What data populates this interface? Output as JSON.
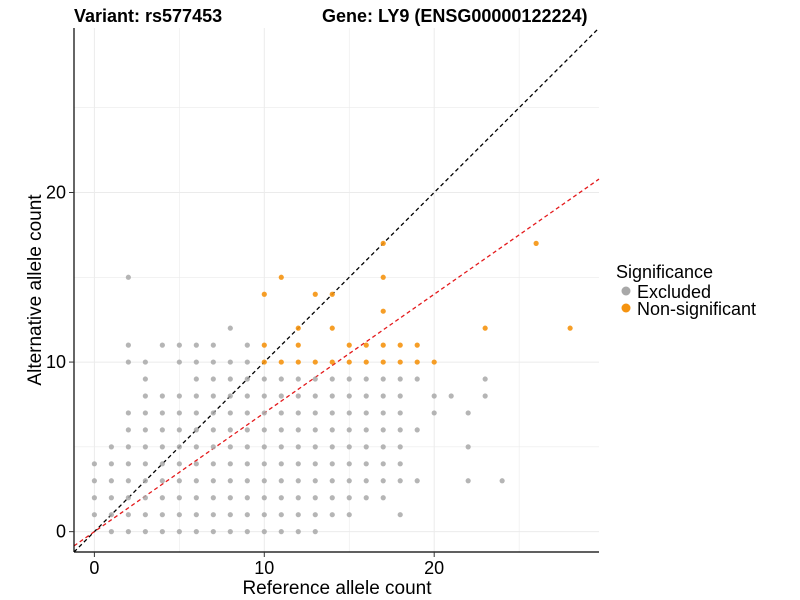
{
  "chart_data": {
    "type": "scatter",
    "title_left": "Variant: rs577453",
    "title_right": "Gene: LY9 (ENSG00000122224)",
    "xlabel": "Reference allele count",
    "ylabel": "Alternative allele count",
    "xlim": [
      -1.2,
      29.7
    ],
    "ylim": [
      -1.2,
      29.7
    ],
    "x_ticks": [
      0,
      10,
      20
    ],
    "y_ticks": [
      0,
      10,
      20
    ],
    "x_tick_labels": [
      "0",
      "10",
      "20"
    ],
    "y_tick_labels": [
      "0",
      "10",
      "20"
    ],
    "grid": true,
    "legend": {
      "title": "Significance",
      "position": "right",
      "entries": [
        "Excluded",
        "Non-significant"
      ]
    },
    "colors": {
      "Excluded": "#a8a8a8",
      "Non-significant": "#f5930f",
      "line_identity": "#000000",
      "line_fit": "#e41a1c",
      "grid": "#ebebeb"
    },
    "reference_lines": [
      {
        "name": "identity",
        "slope": 1.0,
        "intercept": 0.0,
        "color": "#000000",
        "dashed": true
      },
      {
        "name": "fit",
        "slope": 0.7,
        "intercept": 0.0,
        "color": "#e41a1c",
        "dashed": true
      }
    ],
    "series": [
      {
        "name": "Excluded",
        "points": [
          [
            0,
            1
          ],
          [
            0,
            2
          ],
          [
            0,
            3
          ],
          [
            0,
            4
          ],
          [
            1,
            0
          ],
          [
            1,
            1
          ],
          [
            1,
            2
          ],
          [
            1,
            3
          ],
          [
            1,
            4
          ],
          [
            1,
            5
          ],
          [
            2,
            0
          ],
          [
            2,
            1
          ],
          [
            2,
            2
          ],
          [
            2,
            3
          ],
          [
            2,
            4
          ],
          [
            2,
            5
          ],
          [
            2,
            6
          ],
          [
            2,
            7
          ],
          [
            2,
            10
          ],
          [
            2,
            11
          ],
          [
            2,
            15
          ],
          [
            3,
            0
          ],
          [
            3,
            1
          ],
          [
            3,
            2
          ],
          [
            3,
            3
          ],
          [
            3,
            4
          ],
          [
            3,
            5
          ],
          [
            3,
            6
          ],
          [
            3,
            7
          ],
          [
            3,
            8
          ],
          [
            3,
            9
          ],
          [
            3,
            10
          ],
          [
            4,
            0
          ],
          [
            4,
            1
          ],
          [
            4,
            2
          ],
          [
            4,
            3
          ],
          [
            4,
            4
          ],
          [
            4,
            5
          ],
          [
            4,
            6
          ],
          [
            4,
            7
          ],
          [
            4,
            8
          ],
          [
            4,
            11
          ],
          [
            5,
            0
          ],
          [
            5,
            1
          ],
          [
            5,
            2
          ],
          [
            5,
            3
          ],
          [
            5,
            4
          ],
          [
            5,
            5
          ],
          [
            5,
            6
          ],
          [
            5,
            7
          ],
          [
            5,
            8
          ],
          [
            5,
            10
          ],
          [
            5,
            11
          ],
          [
            6,
            0
          ],
          [
            6,
            1
          ],
          [
            6,
            2
          ],
          [
            6,
            3
          ],
          [
            6,
            4
          ],
          [
            6,
            5
          ],
          [
            6,
            6
          ],
          [
            6,
            7
          ],
          [
            6,
            8
          ],
          [
            6,
            9
          ],
          [
            6,
            10
          ],
          [
            6,
            11
          ],
          [
            7,
            0
          ],
          [
            7,
            1
          ],
          [
            7,
            2
          ],
          [
            7,
            3
          ],
          [
            7,
            4
          ],
          [
            7,
            5
          ],
          [
            7,
            6
          ],
          [
            7,
            7
          ],
          [
            7,
            8
          ],
          [
            7,
            9
          ],
          [
            7,
            10
          ],
          [
            7,
            11
          ],
          [
            8,
            0
          ],
          [
            8,
            1
          ],
          [
            8,
            2
          ],
          [
            8,
            3
          ],
          [
            8,
            4
          ],
          [
            8,
            5
          ],
          [
            8,
            6
          ],
          [
            8,
            7
          ],
          [
            8,
            8
          ],
          [
            8,
            9
          ],
          [
            8,
            10
          ],
          [
            8,
            12
          ],
          [
            9,
            0
          ],
          [
            9,
            1
          ],
          [
            9,
            2
          ],
          [
            9,
            3
          ],
          [
            9,
            4
          ],
          [
            9,
            5
          ],
          [
            9,
            6
          ],
          [
            9,
            7
          ],
          [
            9,
            8
          ],
          [
            9,
            9
          ],
          [
            9,
            10
          ],
          [
            9,
            11
          ],
          [
            10,
            0
          ],
          [
            10,
            1
          ],
          [
            10,
            2
          ],
          [
            10,
            3
          ],
          [
            10,
            4
          ],
          [
            10,
            5
          ],
          [
            10,
            6
          ],
          [
            10,
            7
          ],
          [
            10,
            8
          ],
          [
            10,
            9
          ],
          [
            11,
            0
          ],
          [
            11,
            1
          ],
          [
            11,
            2
          ],
          [
            11,
            3
          ],
          [
            11,
            4
          ],
          [
            11,
            5
          ],
          [
            11,
            6
          ],
          [
            11,
            7
          ],
          [
            11,
            8
          ],
          [
            11,
            9
          ],
          [
            12,
            0
          ],
          [
            12,
            1
          ],
          [
            12,
            2
          ],
          [
            12,
            3
          ],
          [
            12,
            4
          ],
          [
            12,
            5
          ],
          [
            12,
            6
          ],
          [
            12,
            7
          ],
          [
            12,
            8
          ],
          [
            12,
            9
          ],
          [
            13,
            0
          ],
          [
            13,
            1
          ],
          [
            13,
            2
          ],
          [
            13,
            3
          ],
          [
            13,
            4
          ],
          [
            13,
            5
          ],
          [
            13,
            6
          ],
          [
            13,
            7
          ],
          [
            13,
            8
          ],
          [
            13,
            9
          ],
          [
            14,
            1
          ],
          [
            14,
            2
          ],
          [
            14,
            3
          ],
          [
            14,
            4
          ],
          [
            14,
            5
          ],
          [
            14,
            6
          ],
          [
            14,
            7
          ],
          [
            14,
            8
          ],
          [
            14,
            9
          ],
          [
            15,
            1
          ],
          [
            15,
            2
          ],
          [
            15,
            3
          ],
          [
            15,
            4
          ],
          [
            15,
            5
          ],
          [
            15,
            6
          ],
          [
            15,
            7
          ],
          [
            15,
            8
          ],
          [
            15,
            9
          ],
          [
            16,
            2
          ],
          [
            16,
            3
          ],
          [
            16,
            4
          ],
          [
            16,
            5
          ],
          [
            16,
            6
          ],
          [
            16,
            7
          ],
          [
            16,
            8
          ],
          [
            16,
            9
          ],
          [
            17,
            2
          ],
          [
            17,
            3
          ],
          [
            17,
            4
          ],
          [
            17,
            5
          ],
          [
            17,
            6
          ],
          [
            17,
            7
          ],
          [
            17,
            8
          ],
          [
            17,
            9
          ],
          [
            18,
            1
          ],
          [
            18,
            3
          ],
          [
            18,
            4
          ],
          [
            18,
            5
          ],
          [
            18,
            6
          ],
          [
            18,
            7
          ],
          [
            18,
            8
          ],
          [
            18,
            9
          ],
          [
            19,
            3
          ],
          [
            19,
            6
          ],
          [
            19,
            9
          ],
          [
            20,
            7
          ],
          [
            20,
            8
          ],
          [
            21,
            8
          ],
          [
            22,
            3
          ],
          [
            22,
            5
          ],
          [
            22,
            7
          ],
          [
            23,
            8
          ],
          [
            23,
            9
          ],
          [
            24,
            3
          ]
        ]
      },
      {
        "name": "Non-significant",
        "points": [
          [
            10,
            10
          ],
          [
            10,
            11
          ],
          [
            10,
            14
          ],
          [
            11,
            10
          ],
          [
            11,
            15
          ],
          [
            12,
            10
          ],
          [
            12,
            11
          ],
          [
            12,
            12
          ],
          [
            13,
            10
          ],
          [
            13,
            14
          ],
          [
            14,
            10
          ],
          [
            14,
            12
          ],
          [
            14,
            14
          ],
          [
            15,
            10
          ],
          [
            15,
            11
          ],
          [
            16,
            10
          ],
          [
            16,
            11
          ],
          [
            17,
            10
          ],
          [
            17,
            11
          ],
          [
            17,
            13
          ],
          [
            17,
            15
          ],
          [
            17,
            17
          ],
          [
            18,
            10
          ],
          [
            18,
            11
          ],
          [
            19,
            10
          ],
          [
            19,
            11
          ],
          [
            20,
            10
          ],
          [
            23,
            12
          ],
          [
            26,
            17
          ],
          [
            28,
            12
          ]
        ]
      }
    ]
  }
}
